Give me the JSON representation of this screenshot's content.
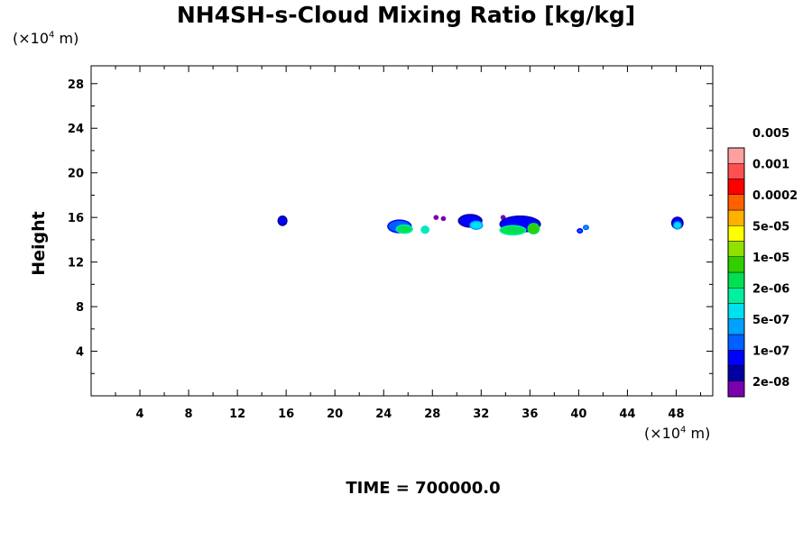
{
  "chart_data": {
    "type": "heatmap",
    "title": "NH4SH-s-Cloud Mixing Ratio [kg/kg]",
    "ylabel": "Height",
    "x_unit": "(×10⁴ m)",
    "y_unit": "(×10⁴ m)",
    "footer": "TIME = 700000.0",
    "xlim": [
      0,
      51
    ],
    "ylim": [
      0,
      29.6
    ],
    "x_ticks": [
      4,
      8,
      12,
      16,
      20,
      24,
      28,
      32,
      36,
      40,
      44,
      48
    ],
    "y_ticks": [
      4,
      8,
      12,
      16,
      20,
      24,
      28
    ],
    "colorbar": {
      "labels": [
        "2e-08",
        "1e-07",
        "5e-07",
        "2e-06",
        "1e-05",
        "5e-05",
        "0.0002",
        "0.001",
        "0.005"
      ],
      "colors": [
        "#7a00b0",
        "#0000a0",
        "#0000ff",
        "#0060ff",
        "#00a0ff",
        "#00e0f0",
        "#00f0a0",
        "#00e050",
        "#30d000",
        "#90e000",
        "#ffff00",
        "#ffb000",
        "#ff6000",
        "#ff0000",
        "#ff5050",
        "#ffa0a0"
      ]
    },
    "blobs": [
      {
        "x": 15.7,
        "y": 15.7,
        "rx": 0.3,
        "ry": 0.35,
        "level": 2
      },
      {
        "x": 25.3,
        "y": 15.2,
        "rx": 0.9,
        "ry": 0.5,
        "level": 3
      },
      {
        "x": 25.7,
        "y": 14.95,
        "rx": 0.6,
        "ry": 0.3,
        "level": 7
      },
      {
        "x": 27.4,
        "y": 14.9,
        "rx": 0.25,
        "ry": 0.25,
        "level": 6
      },
      {
        "x": 28.3,
        "y": 16.0,
        "rx": 0.1,
        "ry": 0.1,
        "level": 0
      },
      {
        "x": 28.9,
        "y": 15.9,
        "rx": 0.1,
        "ry": 0.1,
        "level": 0
      },
      {
        "x": 31.1,
        "y": 15.7,
        "rx": 0.9,
        "ry": 0.5,
        "level": 2
      },
      {
        "x": 31.6,
        "y": 15.3,
        "rx": 0.45,
        "ry": 0.3,
        "level": 5
      },
      {
        "x": 33.8,
        "y": 16.0,
        "rx": 0.1,
        "ry": 0.1,
        "level": 0
      },
      {
        "x": 35.2,
        "y": 15.4,
        "rx": 1.6,
        "ry": 0.65,
        "level": 2
      },
      {
        "x": 34.6,
        "y": 14.85,
        "rx": 1.0,
        "ry": 0.35,
        "level": 7
      },
      {
        "x": 36.3,
        "y": 15.0,
        "rx": 0.4,
        "ry": 0.4,
        "level": 8
      },
      {
        "x": 40.1,
        "y": 14.8,
        "rx": 0.15,
        "ry": 0.12,
        "level": 3
      },
      {
        "x": 40.6,
        "y": 15.1,
        "rx": 0.15,
        "ry": 0.12,
        "level": 4
      },
      {
        "x": 48.1,
        "y": 15.5,
        "rx": 0.4,
        "ry": 0.45,
        "level": 2
      },
      {
        "x": 48.1,
        "y": 15.3,
        "rx": 0.25,
        "ry": 0.25,
        "level": 5
      }
    ]
  }
}
